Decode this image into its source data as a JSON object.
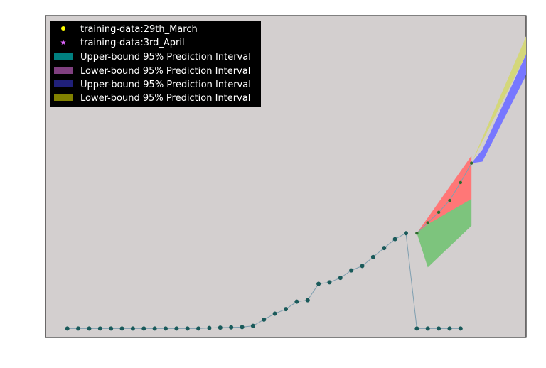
{
  "chart_data": {
    "type": "scatter",
    "title": "",
    "xlabel": "",
    "ylabel": "",
    "grid": false,
    "legend_placement": "top-left",
    "axes_ticks_visible": false,
    "xlim": [
      -2,
      42
    ],
    "ylim": [
      -3,
      105
    ],
    "colors": {
      "background": "#d3cfcf",
      "legend_bg": "#000000",
      "marker_29th_march": "#1a5a5a",
      "marker_3rd_april": "#2d6b2d",
      "legend_dot": "#ffff00",
      "legend_star": "#e066ff",
      "line": "#7f9fb0",
      "band_red": "#ff7777",
      "band_green": "#7dc47d",
      "band_blue": "#7777ff",
      "band_yellow": "#d4d77a",
      "legend_swatch_teal": "#008080",
      "legend_swatch_purple": "#804080",
      "legend_swatch_navy": "#20207a",
      "legend_swatch_olive": "#808000"
    },
    "legend": [
      {
        "label": "training-data:29th_March",
        "marker": "dot"
      },
      {
        "label": "training-data:3rd_April",
        "marker": "star"
      },
      {
        "label": "Upper-bound 95% Prediction Interval",
        "marker": "swatch",
        "swatch": "legend_swatch_teal"
      },
      {
        "label": "Lower-bound 95% Prediction Interval",
        "marker": "swatch",
        "swatch": "legend_swatch_purple"
      },
      {
        "label": "Upper-bound 95% Prediction Interval",
        "marker": "swatch",
        "swatch": "legend_swatch_navy"
      },
      {
        "label": "Lower-bound 95% Prediction Interval",
        "marker": "swatch",
        "swatch": "legend_swatch_olive"
      }
    ],
    "series": [
      {
        "marker": "dot",
        "x": [
          0,
          1,
          2,
          3,
          4,
          5,
          6,
          7,
          8,
          9,
          10,
          11,
          12,
          13,
          14,
          15,
          16,
          17,
          18,
          19,
          20,
          21,
          22,
          23,
          24,
          25,
          26,
          27,
          28,
          29,
          30,
          31,
          32,
          33,
          34,
          35,
          36
        ],
        "y": [
          0,
          0,
          0,
          0,
          0,
          0,
          0,
          0,
          0,
          0,
          0,
          0,
          0,
          0.2,
          0.3,
          0.4,
          0.5,
          0.9,
          3,
          5,
          6.5,
          9,
          9.5,
          15,
          15.5,
          17,
          19.5,
          21,
          24,
          27,
          30,
          32,
          0,
          0,
          0,
          0,
          0
        ]
      },
      {
        "marker": "star",
        "x": [
          32,
          33,
          34,
          35,
          36,
          37
        ],
        "y": [
          32,
          35.5,
          39,
          43,
          49,
          55.5
        ]
      }
    ],
    "intervals": [
      {
        "color": "band_red",
        "x": [
          32,
          37
        ],
        "lower": [
          32,
          43.5
        ],
        "upper": [
          32,
          58
        ]
      },
      {
        "color": "band_green",
        "x": [
          32,
          33,
          37
        ],
        "lower": [
          32,
          20.5,
          34.5
        ],
        "upper": [
          32,
          35,
          43.5
        ]
      },
      {
        "color": "band_blue",
        "x": [
          37,
          38,
          42
        ],
        "lower": [
          55.5,
          56,
          85
        ],
        "upper": [
          55.5,
          60,
          92
        ]
      },
      {
        "color": "band_yellow",
        "x": [
          37,
          42
        ],
        "lower": [
          55.5,
          92
        ],
        "upper": [
          55.5,
          98
        ]
      }
    ]
  }
}
